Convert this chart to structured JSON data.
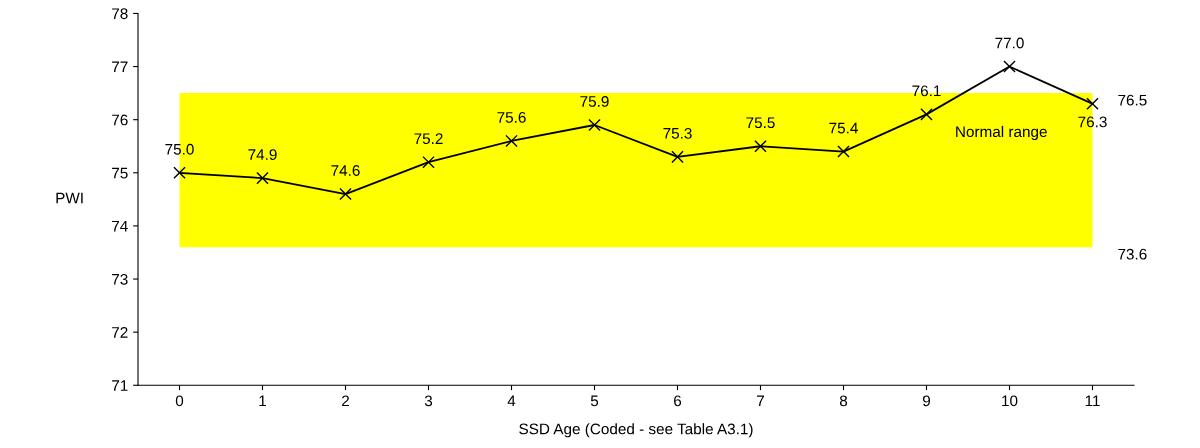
{
  "chart_data": {
    "type": "line",
    "xlabel": "SSD Age (Coded - see Table A3.1)",
    "ylabel": "PWI",
    "categories": [
      "0",
      "1",
      "2",
      "3",
      "4",
      "5",
      "6",
      "7",
      "8",
      "9",
      "10",
      "11"
    ],
    "series": [
      {
        "color": "#000000",
        "values": [
          75.0,
          74.9,
          74.6,
          75.2,
          75.6,
          75.9,
          75.3,
          75.5,
          75.4,
          76.1,
          77.0,
          76.3
        ]
      }
    ],
    "value_labels": [
      "75.0",
      "74.9",
      "74.6",
      "75.2",
      "75.6",
      "75.9",
      "75.3",
      "75.5",
      "75.4",
      "76.1",
      "77.0",
      "76.3"
    ],
    "bands": [
      {
        "axis": "y",
        "from": 73.6,
        "to": 76.5,
        "label": "Normal range",
        "color": "#ffff00"
      }
    ],
    "annotations": [
      {
        "text": "76.5",
        "x": "11",
        "y": 76.5
      },
      {
        "text": "73.6",
        "x": "11",
        "y": 73.6
      }
    ],
    "ylim": [
      71,
      78
    ],
    "yticks": [
      71,
      72,
      73,
      74,
      75,
      76,
      77,
      78
    ],
    "marker": "cross",
    "line_style": "solid",
    "grid": false,
    "legend": false
  }
}
